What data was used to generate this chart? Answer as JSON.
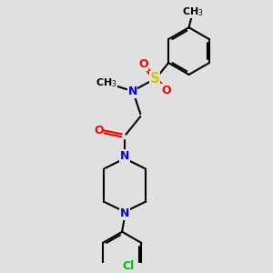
{
  "bg_color": "#e0e0e0",
  "bond_color": "#000000",
  "n_color": "#0000ff",
  "o_color": "#ff0000",
  "s_color": "#cccc00",
  "cl_color": "#00bb00",
  "line_width": 1.5,
  "font_size": 9,
  "figsize": [
    3.0,
    3.0
  ],
  "dpi": 100,
  "xlim": [
    0,
    10
  ],
  "ylim": [
    0,
    10
  ]
}
